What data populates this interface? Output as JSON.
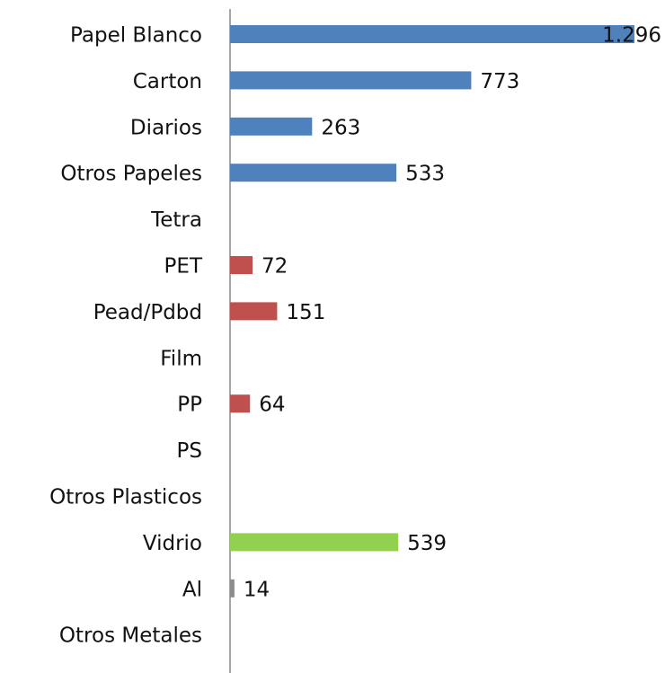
{
  "chart_data": {
    "type": "bar",
    "orientation": "horizontal",
    "categories": [
      "Papel Blanco",
      "Carton",
      "Diarios",
      "Otros Papeles",
      "Tetra",
      "PET",
      "Pead/Pdbd",
      "Film",
      "PP",
      "PS",
      "Otros Plasticos",
      "Vidrio",
      "Al",
      "Otros Metales"
    ],
    "values": [
      1296,
      773,
      263,
      533,
      null,
      72,
      151,
      null,
      64,
      null,
      null,
      539,
      14,
      null
    ],
    "value_labels": [
      "1.296",
      "773",
      "263",
      "533",
      null,
      "72",
      "151",
      null,
      "64",
      null,
      null,
      "539",
      "14",
      null
    ],
    "colors": [
      "#4f81bd",
      "#4f81bd",
      "#4f81bd",
      "#4f81bd",
      null,
      "#c0504d",
      "#c0504d",
      null,
      "#c0504d",
      null,
      null,
      "#92d050",
      "#8c8c8c",
      null
    ]
  }
}
